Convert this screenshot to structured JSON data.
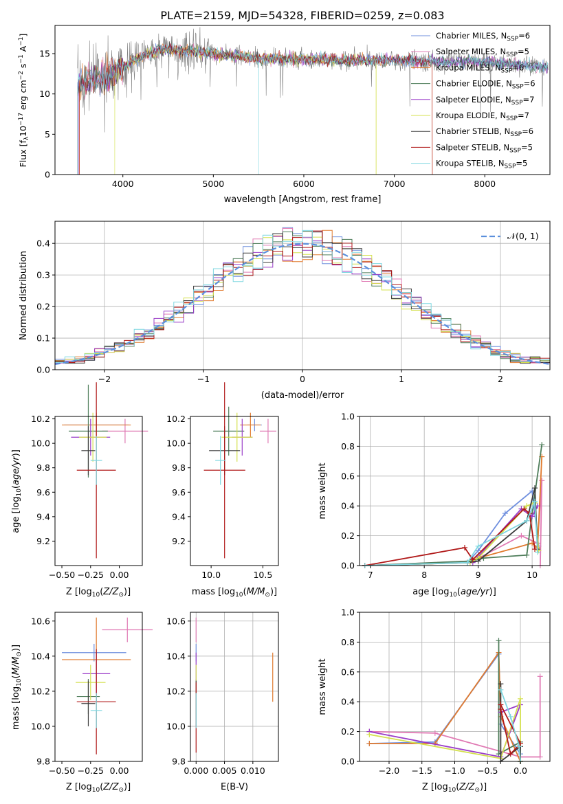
{
  "figure": {
    "title": "PLATE=2159, MJD=54328, FIBERID=0259, z=0.083"
  },
  "series": [
    {
      "name": "Chabrier MILES",
      "legend": "Chabrier MILES, N",
      "nssp": "=6",
      "color": "#6f8fde"
    },
    {
      "name": "Salpeter MILES",
      "legend": "Salpeter MILES, N",
      "nssp": "=5",
      "color": "#e07ab4"
    },
    {
      "name": "Kroupa MILES",
      "legend": "Kroupa MILES, N",
      "nssp": "=6",
      "color": "#e07a2e"
    },
    {
      "name": "Chabrier ELODIE",
      "legend": "Chabrier ELODIE, N",
      "nssp": "=6",
      "color": "#4e7d5a"
    },
    {
      "name": "Salpeter ELODIE",
      "legend": "Salpeter ELODIE, N",
      "nssp": "=7",
      "color": "#9a3cc8"
    },
    {
      "name": "Kroupa ELODIE",
      "legend": "Kroupa ELODIE, N",
      "nssp": "=7",
      "color": "#d4e04e"
    },
    {
      "name": "Chabrier STELIB",
      "legend": "Chabrier STELIB, N",
      "nssp": "=6",
      "color": "#3b3b3b"
    },
    {
      "name": "Salpeter STELIB",
      "legend": "Salpeter STELIB, N",
      "nssp": "=5",
      "color": "#b01818"
    },
    {
      "name": "Kroupa STELIB",
      "legend": "Kroupa STELIB, N",
      "nssp": "=5",
      "color": "#7fd7e0"
    }
  ],
  "legend_sub": "SSP",
  "chart_data": [
    {
      "id": "spectrum",
      "type": "line",
      "xlabel": "wavelength [Angstrom, rest frame]",
      "ylabel": "Flux [f",
      "ylabel_parts": [
        "Flux [f",
        "λ",
        "10",
        "−17",
        " erg cm",
        "−2",
        " s",
        "−1",
        " A",
        "−1",
        "]"
      ],
      "xlim": [
        3250,
        8720
      ],
      "ylim": [
        0,
        18.5
      ],
      "xticks": [
        4000,
        5000,
        6000,
        7000,
        8000
      ],
      "yticks": [
        0,
        5,
        10,
        15
      ],
      "grid": false,
      "legend_position": "right",
      "data_color": "#808080",
      "continuum": [
        [
          3500,
          11.0
        ],
        [
          3650,
          11.8
        ],
        [
          3800,
          12.0
        ],
        [
          3950,
          13.0
        ],
        [
          4100,
          14.0
        ],
        [
          4300,
          15.0
        ],
        [
          4500,
          15.6
        ],
        [
          4700,
          15.3
        ],
        [
          5000,
          15.0
        ],
        [
          5500,
          14.4
        ],
        [
          6000,
          14.3
        ],
        [
          6500,
          14.2
        ],
        [
          7000,
          14.2
        ],
        [
          7500,
          14.0
        ],
        [
          8000,
          14.0
        ],
        [
          8500,
          13.5
        ],
        [
          8720,
          13.3
        ]
      ]
    },
    {
      "id": "residuals",
      "type": "histogram",
      "xlabel": "(data-model)/error",
      "ylabel": "Normed distribution",
      "xlim": [
        -2.5,
        2.5
      ],
      "ylim": [
        0,
        0.47
      ],
      "xticks": [
        -2,
        -1,
        0,
        1,
        2
      ],
      "yticks": [
        0.0,
        0.1,
        0.2,
        0.3,
        0.4
      ],
      "grid": true,
      "legend_position": "top-right",
      "legend_label": "𝒩(0, 1)",
      "normal_color": "#5b8fdc",
      "bin_width": 0.1
    },
    {
      "id": "age-vs-Z",
      "type": "scatter",
      "xlabel": "Z [log",
      "ylabel": "age  [log",
      "xlim": [
        -0.56,
        0.2
      ],
      "ylim": [
        9.0,
        10.22
      ],
      "xticks": [
        -0.5,
        -0.25,
        0.0
      ],
      "yticks": [
        9.2,
        9.4,
        9.6,
        9.8,
        10.0,
        10.2
      ],
      "grid": false,
      "points": [
        {
          "x": -0.2,
          "y": 10.15,
          "xerr": 0.28,
          "yerr": 0.05
        },
        {
          "x": 0.05,
          "y": 10.1,
          "xerr": 0.2,
          "yerr": 0.1
        },
        {
          "x": -0.2,
          "y": 10.15,
          "xerr": 0.3,
          "yerr": 0.1
        },
        {
          "x": -0.27,
          "y": 10.1,
          "xerr": 0.17,
          "yerr": 0.38
        },
        {
          "x": -0.25,
          "y": 10.05,
          "xerr": 0.17,
          "yerr": 0.15
        },
        {
          "x": -0.23,
          "y": 10.05,
          "xerr": 0.12,
          "yerr": 0.2
        },
        {
          "x": -0.27,
          "y": 9.94,
          "xerr": 0.06,
          "yerr": 0.2
        },
        {
          "x": -0.2,
          "y": 9.78,
          "xerr": 0.17,
          "yerr": 0.72
        },
        {
          "x": -0.2,
          "y": 9.86,
          "xerr": 0.05,
          "yerr": 0.2
        }
      ]
    },
    {
      "id": "age-vs-mass",
      "type": "scatter",
      "xlabel": "mass [log",
      "xlim": [
        9.8,
        10.65
      ],
      "ylim": [
        9.0,
        10.22
      ],
      "xticks": [
        10.0,
        10.5
      ],
      "yticks": [
        9.2,
        9.4,
        9.6,
        9.8,
        10.0,
        10.2
      ],
      "grid": false,
      "points": [
        {
          "x": 10.42,
          "y": 10.15,
          "xerr": 0.07,
          "yerr": 0.05
        },
        {
          "x": 10.55,
          "y": 10.1,
          "xerr": 0.08,
          "yerr": 0.1
        },
        {
          "x": 10.38,
          "y": 10.15,
          "xerr": 0.1,
          "yerr": 0.1
        },
        {
          "x": 10.17,
          "y": 10.1,
          "xerr": 0.15,
          "yerr": 0.2
        },
        {
          "x": 10.3,
          "y": 10.05,
          "xerr": 0.1,
          "yerr": 0.15
        },
        {
          "x": 10.25,
          "y": 10.05,
          "xerr": 0.15,
          "yerr": 0.2
        },
        {
          "x": 10.13,
          "y": 9.94,
          "xerr": 0.15,
          "yerr": 0.2
        },
        {
          "x": 10.13,
          "y": 9.78,
          "xerr": 0.2,
          "yerr": 0.72
        },
        {
          "x": 10.09,
          "y": 9.86,
          "xerr": 0.05,
          "yerr": 0.2
        }
      ]
    },
    {
      "id": "mass-weight-vs-age",
      "type": "line",
      "xlabel": "age  [log",
      "ylabel": "mass weight",
      "xlim": [
        6.8,
        10.33
      ],
      "ylim": [
        0,
        1
      ],
      "xticks": [
        7,
        8,
        9,
        10
      ],
      "yticks": [
        0.0,
        0.2,
        0.4,
        0.6,
        0.8,
        1.0
      ],
      "grid": true,
      "series": [
        [
          [
            6.9,
            0.0
          ],
          [
            8.8,
            0.02
          ],
          [
            9.0,
            0.1
          ],
          [
            9.5,
            0.35
          ],
          [
            10.0,
            0.5
          ],
          [
            10.12,
            0.13
          ]
        ],
        [
          [
            6.9,
            0.0
          ],
          [
            8.9,
            0.03
          ],
          [
            9.8,
            0.2
          ],
          [
            10.1,
            0.15
          ],
          [
            10.18,
            0.57
          ],
          [
            10.15,
            0.0
          ]
        ],
        [
          [
            6.9,
            0.0
          ],
          [
            8.8,
            0.02
          ],
          [
            9.0,
            0.05
          ],
          [
            10.0,
            0.15
          ],
          [
            10.1,
            0.12
          ],
          [
            10.18,
            0.73
          ]
        ],
        [
          [
            6.9,
            0.0
          ],
          [
            8.85,
            0.03
          ],
          [
            9.1,
            0.05
          ],
          [
            9.9,
            0.07
          ],
          [
            10.0,
            0.35
          ],
          [
            10.18,
            0.81
          ]
        ],
        [
          [
            6.9,
            0.0
          ],
          [
            8.9,
            0.02
          ],
          [
            9.0,
            0.06
          ],
          [
            9.8,
            0.38
          ],
          [
            10.0,
            0.33
          ],
          [
            10.1,
            0.4
          ]
        ],
        [
          [
            6.9,
            0.0
          ],
          [
            8.85,
            0.02
          ],
          [
            9.0,
            0.05
          ],
          [
            9.9,
            0.4
          ],
          [
            10.05,
            0.42
          ],
          [
            10.12,
            0.1
          ]
        ],
        [
          [
            6.9,
            0.0
          ],
          [
            8.8,
            0.02
          ],
          [
            9.0,
            0.03
          ],
          [
            9.9,
            0.3
          ],
          [
            10.05,
            0.52
          ],
          [
            10.1,
            0.11
          ]
        ],
        [
          [
            6.9,
            0.0
          ],
          [
            8.75,
            0.12
          ],
          [
            8.9,
            0.04
          ],
          [
            9.85,
            0.38
          ],
          [
            9.95,
            0.35
          ],
          [
            10.05,
            0.11
          ]
        ],
        [
          [
            6.9,
            0.0
          ],
          [
            8.8,
            0.02
          ],
          [
            9.0,
            0.13
          ],
          [
            9.9,
            0.3
          ],
          [
            10.05,
            0.43
          ],
          [
            10.1,
            0.09
          ]
        ]
      ]
    },
    {
      "id": "mass-vs-Z",
      "type": "scatter",
      "xlabel": "Z [log",
      "ylabel": "mass [log",
      "xlim": [
        -0.56,
        0.2
      ],
      "ylim": [
        9.8,
        10.65
      ],
      "xticks": [
        -0.5,
        -0.25,
        0.0
      ],
      "yticks": [
        9.8,
        10.0,
        10.2,
        10.4,
        10.6
      ],
      "grid": false,
      "points": [
        {
          "x": -0.22,
          "y": 10.42,
          "xerr": 0.28,
          "yerr": 0.05
        },
        {
          "x": 0.07,
          "y": 10.55,
          "xerr": 0.22,
          "yerr": 0.07
        },
        {
          "x": -0.2,
          "y": 10.38,
          "xerr": 0.3,
          "yerr": 0.24
        },
        {
          "x": -0.27,
          "y": 10.17,
          "xerr": 0.1,
          "yerr": 0.1
        },
        {
          "x": -0.2,
          "y": 10.3,
          "xerr": 0.12,
          "yerr": 0.12
        },
        {
          "x": -0.25,
          "y": 10.25,
          "xerr": 0.13,
          "yerr": 0.1
        },
        {
          "x": -0.27,
          "y": 10.13,
          "xerr": 0.06,
          "yerr": 0.13
        },
        {
          "x": -0.2,
          "y": 10.14,
          "xerr": 0.17,
          "yerr": 0.3
        },
        {
          "x": -0.2,
          "y": 10.09,
          "xerr": 0.05,
          "yerr": 0.1
        }
      ]
    },
    {
      "id": "mass-vs-EBV",
      "type": "scatter",
      "xlabel": "E(B-V)",
      "xlim": [
        -0.001,
        0.0145
      ],
      "ylim": [
        9.8,
        10.65
      ],
      "xticks": [
        0.0,
        0.005,
        0.01
      ],
      "xticklabels": [
        "0.000",
        "0.005",
        "0.010"
      ],
      "yticks": [
        9.8,
        10.0,
        10.2,
        10.4,
        10.6
      ],
      "grid": true,
      "points": [
        {
          "x": 0.0,
          "y": 10.42,
          "xerr": 0,
          "yerr": 0.05
        },
        {
          "x": 0.0,
          "y": 10.55,
          "xerr": 0,
          "yerr": 0.07
        },
        {
          "x": 0.0135,
          "y": 10.28,
          "xerr": 0,
          "yerr": 0.14
        },
        {
          "x": 0.0,
          "y": 10.17,
          "xerr": 0,
          "yerr": 0.1
        },
        {
          "x": 0.0,
          "y": 10.3,
          "xerr": 0,
          "yerr": 0.12
        },
        {
          "x": 0.0,
          "y": 10.25,
          "xerr": 0,
          "yerr": 0.1
        },
        {
          "x": 0.0,
          "y": 10.13,
          "xerr": 0,
          "yerr": 0.13
        },
        {
          "x": 0.0,
          "y": 10.05,
          "xerr": 0,
          "yerr": 0.2
        },
        {
          "x": 0.0,
          "y": 10.09,
          "xerr": 0,
          "yerr": 0.1
        }
      ]
    },
    {
      "id": "mass-weight-vs-Z",
      "type": "line",
      "xlabel": "Z [log",
      "ylabel": "mass weight",
      "xlim": [
        -2.45,
        0.45
      ],
      "ylim": [
        0,
        1
      ],
      "xticks": [
        -2.0,
        -1.5,
        -1.0,
        -0.5,
        0.0
      ],
      "yticks": [
        0.0,
        0.2,
        0.4,
        0.6,
        0.8,
        1.0
      ],
      "grid": true,
      "series": [
        [
          [
            -2.3,
            0.12
          ],
          [
            -1.3,
            0.13
          ],
          [
            -0.33,
            0.72
          ],
          [
            -0.3,
            0.25
          ],
          [
            0.0,
            0.05
          ]
        ],
        [
          [
            -2.3,
            0.2
          ],
          [
            -1.3,
            0.19
          ],
          [
            0.0,
            0.03
          ],
          [
            0.3,
            0.03
          ],
          [
            0.3,
            0.57
          ]
        ],
        [
          [
            -2.3,
            0.12
          ],
          [
            -1.3,
            0.12
          ],
          [
            -0.33,
            0.73
          ],
          [
            -0.3,
            0.3
          ],
          [
            0.0,
            0.0
          ]
        ],
        [
          [
            -0.33,
            0.81
          ],
          [
            -0.33,
            0.05
          ],
          [
            0.0,
            0.13
          ],
          [
            0.0,
            0.0
          ]
        ],
        [
          [
            -2.3,
            0.2
          ],
          [
            -0.3,
            0.03
          ],
          [
            0.0,
            0.38
          ],
          [
            -0.3,
            0.33
          ]
        ],
        [
          [
            -2.3,
            0.18
          ],
          [
            -0.3,
            0.02
          ],
          [
            0.0,
            0.42
          ],
          [
            0.0,
            0.0
          ]
        ],
        [
          [
            -0.3,
            0.52
          ],
          [
            -0.3,
            0.0
          ],
          [
            0.0,
            0.1
          ],
          [
            0.0,
            0.0
          ]
        ],
        [
          [
            -0.3,
            0.35
          ],
          [
            -0.15,
            0.05
          ],
          [
            0.0,
            0.12
          ],
          [
            -0.3,
            0.38
          ]
        ],
        [
          [
            -0.3,
            0.48
          ],
          [
            -0.15,
            0.3
          ],
          [
            -0.02,
            0.1
          ],
          [
            0.0,
            0.0
          ]
        ]
      ]
    }
  ]
}
